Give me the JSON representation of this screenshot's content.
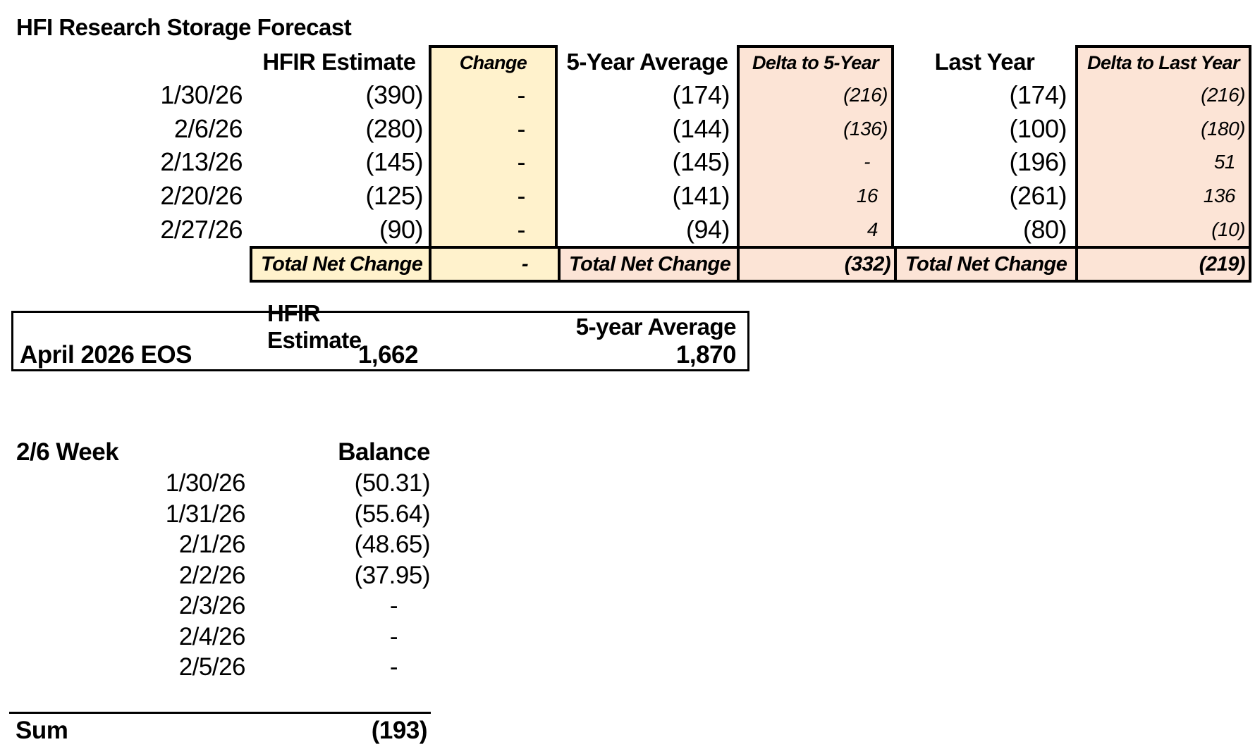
{
  "title": "HFI Research Storage Forecast",
  "colors": {
    "highlight_yellow": "#FFF2CC",
    "highlight_salmon": "#FCE4D6",
    "border": "#000000"
  },
  "forecast_table": {
    "headers": {
      "hfir": "HFIR Estimate",
      "change": "Change",
      "avg5": "5-Year Average",
      "delta5": "Delta to 5-Year",
      "last": "Last Year",
      "deltaLast": "Delta to Last Year"
    },
    "rows": [
      {
        "date": "1/30/26",
        "hfir": "(390)",
        "change": "-",
        "avg5": "(174)",
        "delta5": "(216)",
        "last": "(174)",
        "deltaLast": "(216)"
      },
      {
        "date": "2/6/26",
        "hfir": "(280)",
        "change": "-",
        "avg5": "(144)",
        "delta5": "(136)",
        "last": "(100)",
        "deltaLast": "(180)"
      },
      {
        "date": "2/13/26",
        "hfir": "(145)",
        "change": "-",
        "avg5": "(145)",
        "delta5": "-",
        "last": "(196)",
        "deltaLast": "51"
      },
      {
        "date": "2/20/26",
        "hfir": "(125)",
        "change": "-",
        "avg5": "(141)",
        "delta5": "16",
        "last": "(261)",
        "deltaLast": "136"
      },
      {
        "date": "2/27/26",
        "hfir": "(90)",
        "change": "-",
        "avg5": "(94)",
        "delta5": "4",
        "last": "(80)",
        "deltaLast": "(10)"
      }
    ],
    "total_row": {
      "label1": "Total Net Change",
      "change_total": "-",
      "label2": "Total Net Change",
      "delta5_total": "(332)",
      "label3": "Total Net Change",
      "deltaLast_total": "(219)"
    }
  },
  "eos_table": {
    "headers": {
      "hfir": "HFIR Estimate",
      "avg5": "5-year Average"
    },
    "row": {
      "label": "April 2026 EOS",
      "hfir": "1,662",
      "avg5": "1,870"
    }
  },
  "week_section": {
    "title": "2/6 Week",
    "balance_header": "Balance",
    "rows": [
      {
        "date": "1/30/26",
        "balance": "(50.31)"
      },
      {
        "date": "1/31/26",
        "balance": "(55.64)"
      },
      {
        "date": "2/1/26",
        "balance": "(48.65)"
      },
      {
        "date": "2/2/26",
        "balance": "(37.95)"
      },
      {
        "date": "2/3/26",
        "balance": "-"
      },
      {
        "date": "2/4/26",
        "balance": "-"
      },
      {
        "date": "2/5/26",
        "balance": "-"
      }
    ],
    "sum_label": "Sum",
    "sum_value": "(193)"
  }
}
